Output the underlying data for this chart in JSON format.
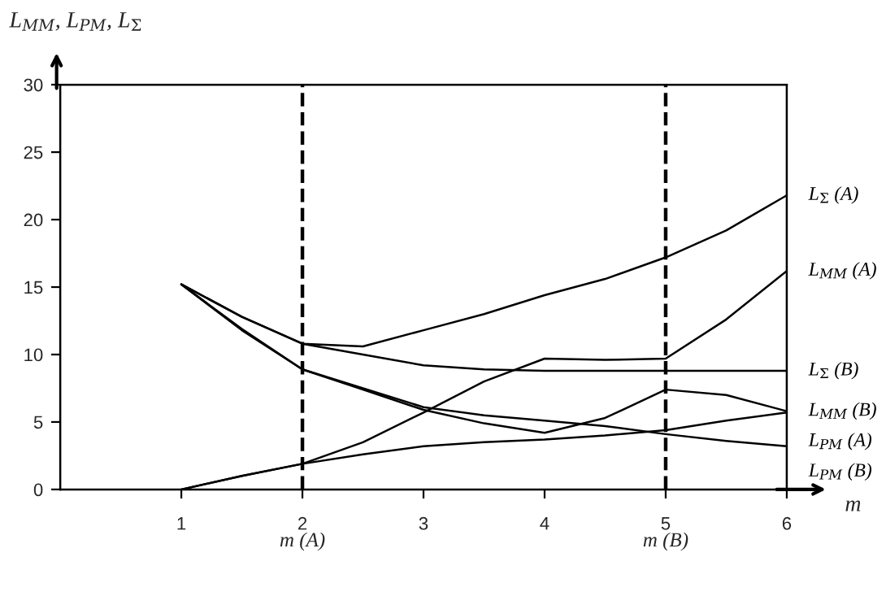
{
  "chart_data": {
    "type": "line",
    "ylabel": "L$_{MM}$, L$_{PM}$, L$_{Σ}$",
    "xlabel": "m",
    "x": [
      1,
      1.5,
      2,
      2.5,
      3,
      3.5,
      4,
      4.5,
      5,
      5.5,
      6
    ],
    "series": [
      {
        "name": "L$_{Σ}$ (A)",
        "color": "#000000",
        "values": [
          15.2,
          12.8,
          10.8,
          10.6,
          11.8,
          13.0,
          14.4,
          15.6,
          17.2,
          19.2,
          21.8
        ]
      },
      {
        "name": "L$_{MM}$ (A)",
        "color": "#000000",
        "values": [
          0,
          1.0,
          1.9,
          3.5,
          5.7,
          8.0,
          9.7,
          9.6,
          9.7,
          12.6,
          16.2
        ]
      },
      {
        "name": "L$_{Σ}$ (B)",
        "color": "#000000",
        "values": [
          15.2,
          12.8,
          10.8,
          10.0,
          9.2,
          8.9,
          8.8,
          8.8,
          8.8,
          8.8,
          8.8
        ]
      },
      {
        "name": "L$_{MM}$ (B)",
        "color": "#000000",
        "values": [
          15.2,
          11.8,
          8.9,
          7.4,
          5.9,
          4.9,
          4.2,
          5.3,
          7.4,
          7.0,
          5.8
        ]
      },
      {
        "name": "L$_{PM}$ (A)",
        "color": "#000000",
        "values": [
          0,
          1.0,
          1.9,
          2.6,
          3.2,
          3.5,
          3.7,
          4.0,
          4.4,
          5.1,
          5.7
        ]
      },
      {
        "name": "L$_{PM}$ (B)",
        "color": "#000000",
        "values": [
          15.2,
          11.9,
          8.9,
          7.5,
          6.1,
          5.5,
          5.1,
          4.7,
          4.1,
          3.6,
          3.2
        ]
      }
    ],
    "xlim": [
      0,
      6
    ],
    "xticks": [
      1,
      2,
      3,
      4,
      5,
      6
    ],
    "ylim": [
      0,
      30
    ],
    "yticks": [
      0,
      5,
      10,
      15,
      20,
      25,
      30
    ],
    "ref_lines": [
      {
        "axis": "x",
        "value": 2,
        "label": "m (A)",
        "line_style": "dashed",
        "color": "#000000"
      },
      {
        "axis": "x",
        "value": 5,
        "label": "m (B)",
        "line_style": "dashed",
        "color": "#000000"
      }
    ],
    "grid": false,
    "legend": false,
    "marker": "none",
    "line_style": "solid"
  }
}
